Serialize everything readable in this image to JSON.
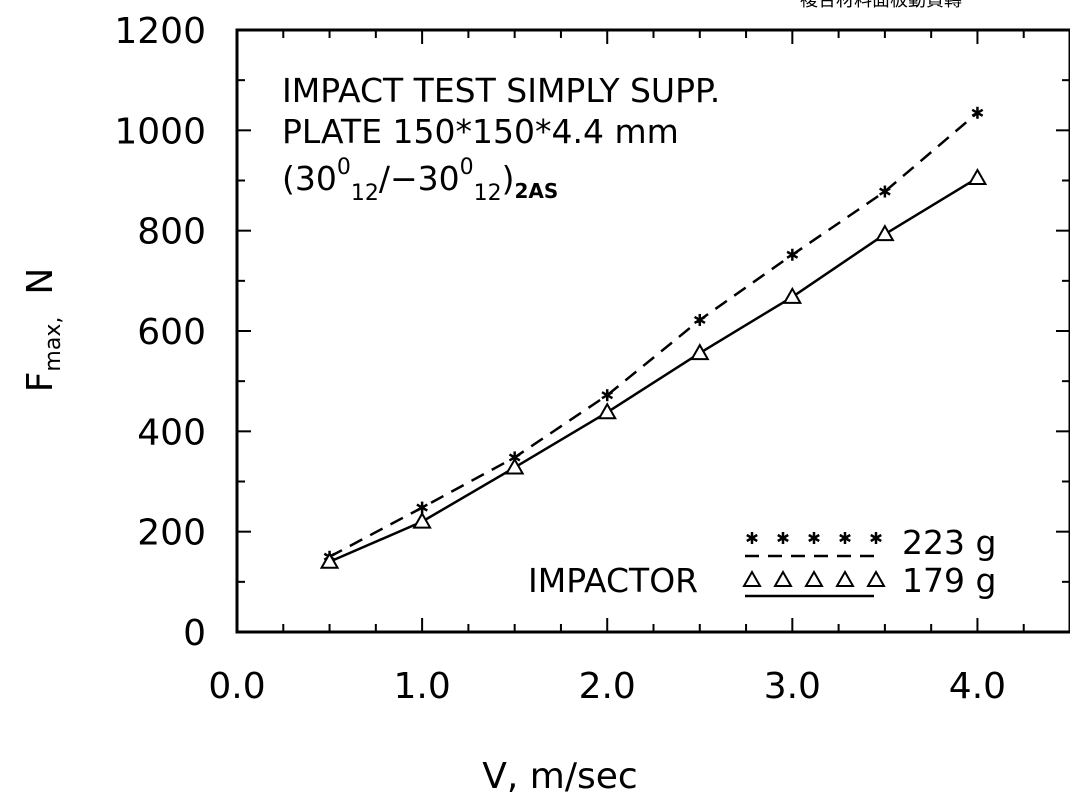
{
  "header_fragment": "複合材料面板動資轉",
  "chart_data": {
    "type": "line",
    "xlabel": "V,  m/sec",
    "ylabel_main": "F",
    "ylabel_sub": "max,",
    "ylabel_unit": "N",
    "xlim": [
      0.0,
      4.5
    ],
    "ylim": [
      0,
      1200
    ],
    "x_ticks": [
      "0.0",
      "1.0",
      "2.0",
      "3.0",
      "4.0"
    ],
    "x_tick_values": [
      0,
      1,
      2,
      3,
      4
    ],
    "y_ticks": [
      "0",
      "200",
      "400",
      "600",
      "800",
      "1000",
      "1200"
    ],
    "y_tick_values": [
      0,
      200,
      400,
      600,
      800,
      1000,
      1200
    ],
    "annotation": {
      "line1": "IMPACT TEST SIMPLY SUPP.",
      "line2": "PLATE 150*150*4.4 mm",
      "line3_open": "(30",
      "line3_sup1": "0",
      "line3_sub1": "12",
      "line3_mid": "/−30",
      "line3_sup2": "0",
      "line3_sub2": "12",
      "line3_close": ")",
      "line3_sub3": "2AS"
    },
    "legend": {
      "label": "IMPACTOR",
      "placement": "bottom-right"
    },
    "series": [
      {
        "name": "223 g",
        "marker": "asterisk",
        "line_style": "dashed",
        "x": [
          0.5,
          1.0,
          1.5,
          2.0,
          2.5,
          3.0,
          3.5,
          4.0
        ],
        "y": [
          150,
          248,
          348,
          472,
          622,
          752,
          878,
          1035
        ]
      },
      {
        "name": "179 g",
        "marker": "triangle",
        "line_style": "solid",
        "x": [
          0.5,
          1.0,
          1.5,
          2.0,
          2.5,
          3.0,
          3.5,
          4.0
        ],
        "y": [
          140,
          220,
          328,
          438,
          556,
          668,
          793,
          905
        ]
      }
    ]
  }
}
